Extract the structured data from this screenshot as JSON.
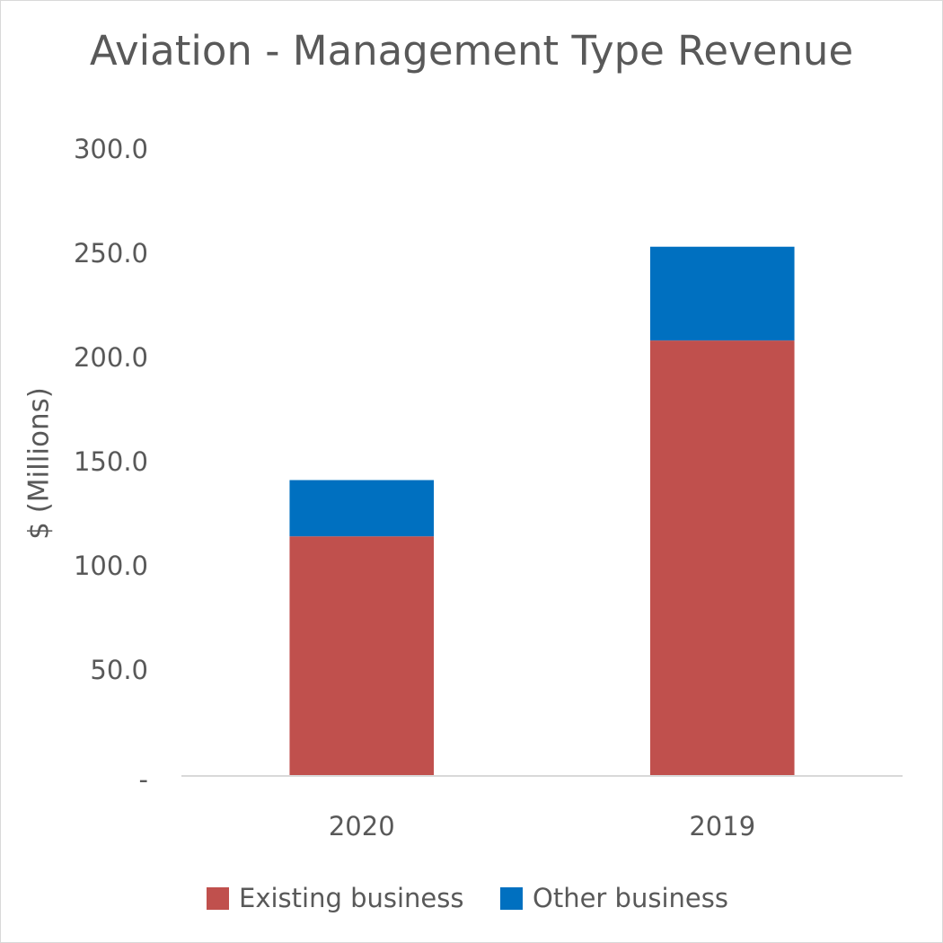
{
  "chart_data": {
    "type": "stacked_bar",
    "title": "Aviation - Management Type Revenue",
    "y_label": "$ (Millions)",
    "categories": [
      "2020",
      "2019"
    ],
    "series": [
      {
        "name": "Existing business",
        "color": "#c0504d",
        "values": [
          115,
          209
        ]
      },
      {
        "name": "Other business",
        "color": "#0070c0",
        "values": [
          27,
          45
        ]
      }
    ],
    "ylim": [
      0,
      300
    ],
    "yticks": [
      {
        "value": 0,
        "label": "-"
      },
      {
        "value": 50,
        "label": "50.0"
      },
      {
        "value": 100,
        "label": "100.0"
      },
      {
        "value": 150,
        "label": "150.0"
      },
      {
        "value": 200,
        "label": "200.0"
      },
      {
        "value": 250,
        "label": "250.0"
      },
      {
        "value": 300,
        "label": "300.0"
      }
    ],
    "grid": false,
    "legend": "bottom"
  }
}
